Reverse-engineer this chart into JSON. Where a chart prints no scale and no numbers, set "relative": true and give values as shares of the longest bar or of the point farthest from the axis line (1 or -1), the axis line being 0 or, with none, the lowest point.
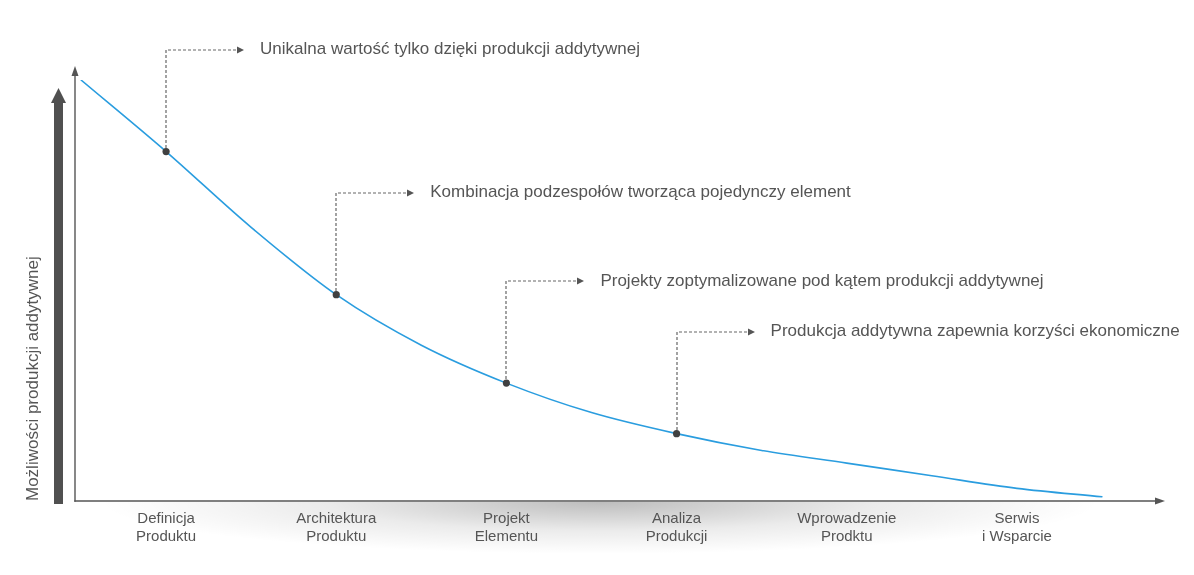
{
  "chart_data": {
    "type": "line",
    "ylabel": "Możliwości produkcji addytywnej",
    "relative": true,
    "legend": false,
    "categories": [
      null,
      "Definicja\nProduktu",
      null,
      "Architektura\nProduktu",
      null,
      "Projekt\nElementu",
      null,
      "Analiza\nProdukcji",
      null,
      "Wprowadzenie\nProdktu",
      null,
      "Serwis\ni Wsparcie",
      null
    ],
    "series": [
      {
        "type": "line",
        "color": "#2a9ddf",
        "marker": "none",
        "values": [
          1,
          0.83,
          0.65,
          0.49,
          0.37,
          0.28,
          0.21,
          0.16,
          0.12,
          0.09,
          0.06,
          0.03,
          0.01
        ]
      },
      {
        "type": "scatter",
        "color": "#404040",
        "marker": "circle",
        "x": [
          "Definicja\nProduktu",
          "Architektura\nProduktu",
          "Projekt\nElementu",
          "Analiza\nProdukcji"
        ],
        "values": [
          0.83,
          0.49,
          0.28,
          0.16
        ]
      }
    ],
    "annotations": [
      {
        "text": "Unikalna wartość tylko dzięki produkcji addytywnej",
        "x": "Definicja\nProduktu",
        "y": 0.83
      },
      {
        "text": "Kombinacja podzespołów tworząca pojedynczy element",
        "x": "Architektura\nProduktu",
        "y": 0.49
      },
      {
        "text": "Projekty zoptymalizowane pod kątem produkcji addytywnej",
        "x": "Projekt\nElementu",
        "y": 0.28
      },
      {
        "text": "Produkcja addytywna zapewnia korzyści ekonomiczne",
        "x": "Analiza\nProdukcji",
        "y": 0.16
      }
    ]
  }
}
